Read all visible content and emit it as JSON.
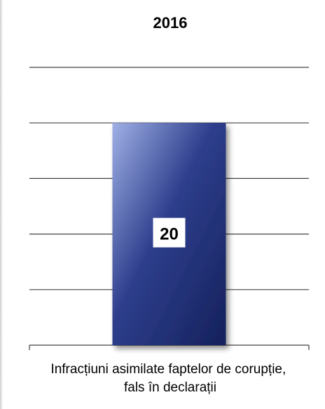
{
  "chart_data": {
    "type": "bar",
    "title": "2016",
    "categories": [
      "Infracțiuni asimilate faptelor de corupție, fals în declarații"
    ],
    "category_label_lines": [
      "Infracțiuni asimilate faptelor de corupție,",
      "fals în declarații"
    ],
    "values": [
      20
    ],
    "data_labels": [
      "20"
    ],
    "ylim": [
      0,
      25
    ],
    "gridline_step": 5,
    "grid": true,
    "legend": "none",
    "bar_color": "#2e3e8c",
    "bar_highlight": "#9fb0e6",
    "bar_shadow": "#14215c",
    "gridline_color": "#404040"
  }
}
